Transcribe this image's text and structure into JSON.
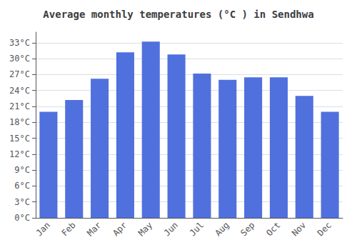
{
  "chart_data": {
    "type": "bar",
    "title": "Average monthly temperatures (°C ) in Sendhwa",
    "categories": [
      "Jan",
      "Feb",
      "Mar",
      "Apr",
      "May",
      "Jun",
      "Jul",
      "Aug",
      "Sep",
      "Oct",
      "Nov",
      "Dec"
    ],
    "values": [
      20.0,
      22.2,
      26.2,
      31.2,
      33.2,
      30.8,
      27.2,
      26.0,
      26.5,
      26.5,
      23.0,
      20.0
    ],
    "ylim": [
      0,
      35.0
    ],
    "yticks": [
      {
        "value": 0,
        "label": "0°C"
      },
      {
        "value": 3,
        "label": "3°C"
      },
      {
        "value": 6,
        "label": "6°C"
      },
      {
        "value": 9,
        "label": "9°C"
      },
      {
        "value": 12,
        "label": "12°C"
      },
      {
        "value": 15,
        "label": "15°C"
      },
      {
        "value": 18,
        "label": "18°C"
      },
      {
        "value": 21,
        "label": "21°C"
      },
      {
        "value": 24,
        "label": "24°C"
      },
      {
        "value": 27,
        "label": "27°C"
      },
      {
        "value": 30,
        "label": "30°C"
      },
      {
        "value": 33,
        "label": "33°C"
      }
    ],
    "grid": true
  }
}
